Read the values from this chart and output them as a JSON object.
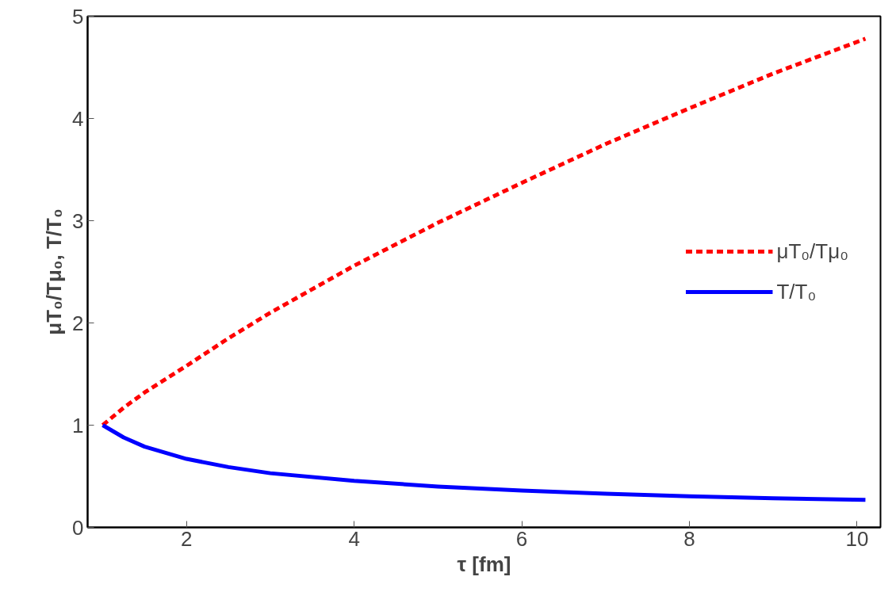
{
  "chart_data": {
    "type": "line",
    "xlabel": "τ [fm]",
    "ylabel": "μT₀/Tμ₀, T/T₀",
    "x": [
      1,
      1.25,
      1.5,
      2,
      2.5,
      3,
      4,
      5,
      6,
      7,
      8,
      9,
      10.1
    ],
    "series": [
      {
        "name": "μT₀/Tμ₀",
        "color": "#ff0000",
        "line_style": "dotted",
        "values": [
          1.0,
          1.17,
          1.32,
          1.58,
          1.85,
          2.1,
          2.56,
          2.98,
          3.37,
          3.75,
          4.1,
          4.44,
          4.78
        ]
      },
      {
        "name": "T/T₀",
        "color": "#0000ff",
        "line_style": "solid",
        "values": [
          1.0,
          0.88,
          0.79,
          0.67,
          0.59,
          0.53,
          0.455,
          0.4,
          0.36,
          0.33,
          0.305,
          0.285,
          0.27
        ]
      }
    ],
    "xlim": [
      0.82,
      10.28
    ],
    "ylim": [
      0,
      5
    ],
    "xticks": [
      2,
      4,
      6,
      8,
      10
    ],
    "yticks": [
      0,
      1,
      2,
      3,
      4,
      5
    ],
    "legend": "right",
    "grid": false
  }
}
